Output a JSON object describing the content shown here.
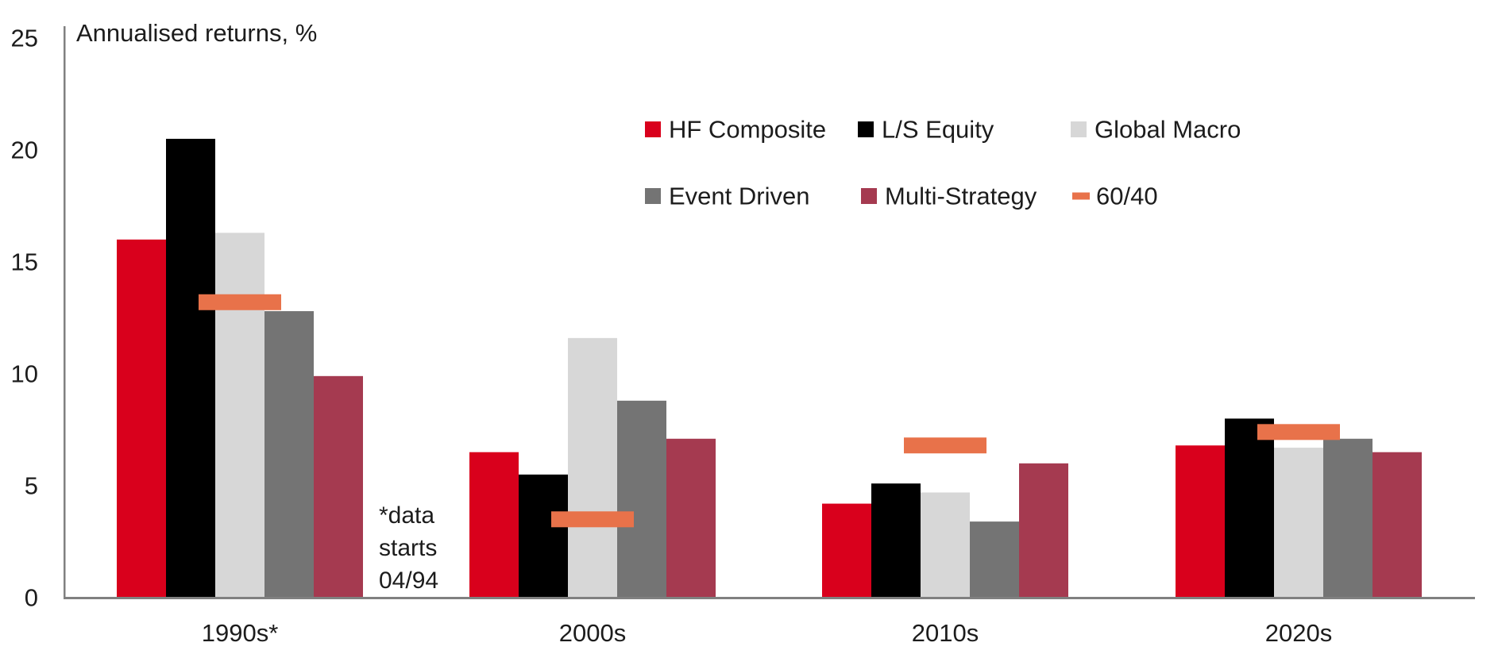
{
  "title": "Annualised returns, %",
  "text_color": "#1c1c1c",
  "axis_color": "#808080",
  "footnote": {
    "text": "*data starts 04/94",
    "lines": [
      "*data",
      "starts",
      "04/94"
    ]
  },
  "chart_data": {
    "type": "bar",
    "title": "Annualised returns, %",
    "categories": [
      "1990s*",
      "2000s",
      "2010s",
      "2020s"
    ],
    "series": [
      {
        "name": "HF Composite",
        "marker": "square",
        "color": "#d9001c",
        "values": [
          16.0,
          6.5,
          4.2,
          6.8
        ]
      },
      {
        "name": "L/S Equity",
        "marker": "square",
        "color": "#000000",
        "values": [
          20.5,
          5.5,
          5.1,
          8.0
        ]
      },
      {
        "name": "Global Macro",
        "marker": "square",
        "color": "#d7d7d7",
        "values": [
          16.3,
          11.6,
          4.7,
          6.7
        ]
      },
      {
        "name": "Event Driven",
        "marker": "square",
        "color": "#747474",
        "values": [
          12.8,
          8.8,
          3.4,
          7.1
        ]
      },
      {
        "name": "Multi-Strategy",
        "marker": "square",
        "color": "#a53a50",
        "values": [
          9.9,
          7.1,
          6.0,
          6.5
        ]
      },
      {
        "name": "60/40",
        "marker": "dash",
        "color": "#e8724a",
        "values": [
          13.2,
          3.5,
          6.8,
          7.4
        ]
      }
    ],
    "ylim": [
      0,
      25
    ],
    "yticks": [
      0,
      5,
      10,
      15,
      20,
      25
    ],
    "ylabel": "Annualised returns, %",
    "xlabel": "",
    "grid": false,
    "legend_position": "top-center",
    "legend_rows": [
      [
        "HF Composite",
        "L/S Equity",
        "Global Macro"
      ],
      [
        "Event Driven",
        "Multi-Strategy",
        "60/40"
      ]
    ],
    "annotation": "*data starts 04/94"
  }
}
